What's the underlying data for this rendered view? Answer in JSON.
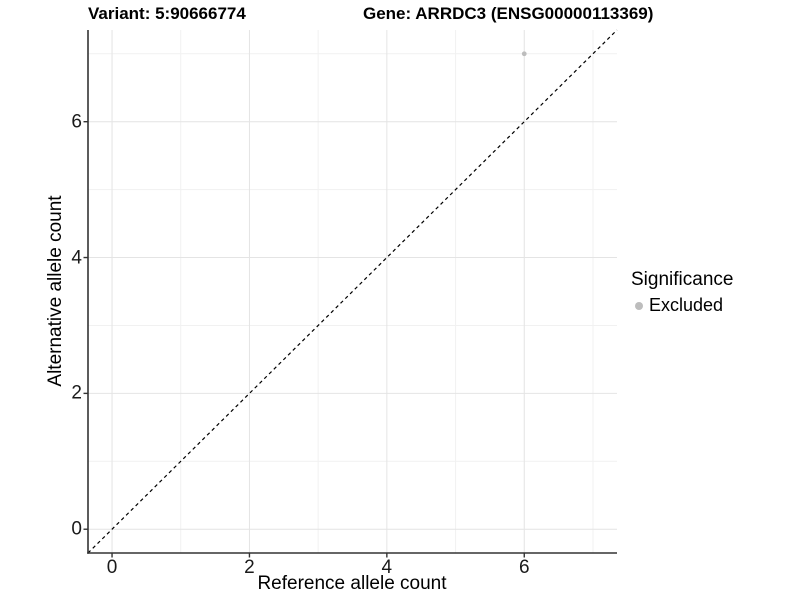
{
  "figure": {
    "title_left": "Variant: 5:90666774",
    "title_right": "Gene: ARRDC3 (ENSG00000113369)"
  },
  "axes": {
    "x_title": "Reference allele count",
    "y_title": "Alternative allele count"
  },
  "legend": {
    "title": "Significance",
    "entries": [
      {
        "label": "Excluded",
        "color": "#bdbdbd"
      }
    ]
  },
  "colors": {
    "background": "#ffffff",
    "axis_line": "#333333",
    "tick": "#333333",
    "grid_major": "#e4e4e4",
    "grid_minor": "#f1f1f1",
    "reference_line": "#000000",
    "point": "#bdbdbd"
  },
  "chart_data": {
    "type": "scatter",
    "title": "Variant: 5:90666774 / Gene: ARRDC3 (ENSG00000113369)",
    "xlabel": "Reference allele count",
    "ylabel": "Alternative allele count",
    "xlim": [
      -0.35,
      7.35
    ],
    "ylim": [
      -0.35,
      7.35
    ],
    "x_ticks": [
      0,
      2,
      4,
      6
    ],
    "y_ticks": [
      0,
      2,
      4,
      6
    ],
    "x_minor_grid": [
      1,
      3,
      5,
      7
    ],
    "y_minor_grid": [
      1,
      3,
      5,
      7
    ],
    "grid": true,
    "legend_title": "Significance",
    "legend_position": "right",
    "series": [
      {
        "name": "Excluded",
        "color": "#bdbdbd",
        "points": [
          {
            "x": 6,
            "y": 7
          }
        ]
      }
    ],
    "reference_line": {
      "slope": 1,
      "intercept": 0,
      "style": "dashed",
      "color": "#000000"
    }
  }
}
